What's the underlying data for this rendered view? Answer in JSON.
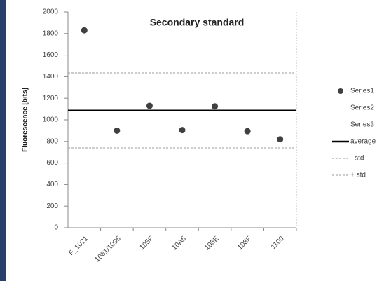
{
  "chart_data": {
    "type": "scatter",
    "title": "Secondary standard",
    "y_label": "Fluorescence [bits]",
    "categories": [
      "F_1021",
      "1061/1095",
      "105F",
      "10A5",
      "105E",
      "108F",
      "1100"
    ],
    "series": [
      {
        "name": "Series1",
        "color": "#404040",
        "values": [
          1830,
          900,
          1130,
          905,
          1125,
          895,
          820
        ]
      },
      {
        "name": "Series2",
        "color": "#4f81bd",
        "values": [
          null,
          null,
          null,
          null,
          null,
          null,
          null
        ]
      },
      {
        "name": "Series3",
        "color": "#9bbb59",
        "values": [
          null,
          null,
          null,
          null,
          null,
          null,
          null
        ]
      }
    ],
    "reference_lines": [
      {
        "name": "average",
        "value": 1086,
        "color": "#000000",
        "style": "solid"
      },
      {
        "name": "- std",
        "value": 740,
        "color": "#9a9a9a",
        "style": "dotted"
      },
      {
        "name": "+ std",
        "value": 1435,
        "color": "#9a9a9a",
        "style": "dotted"
      }
    ],
    "ylim": [
      0,
      2000
    ],
    "yticks": [
      0,
      200,
      400,
      600,
      800,
      1000,
      1200,
      1400,
      1600,
      1800,
      2000
    ],
    "legend": "right"
  }
}
